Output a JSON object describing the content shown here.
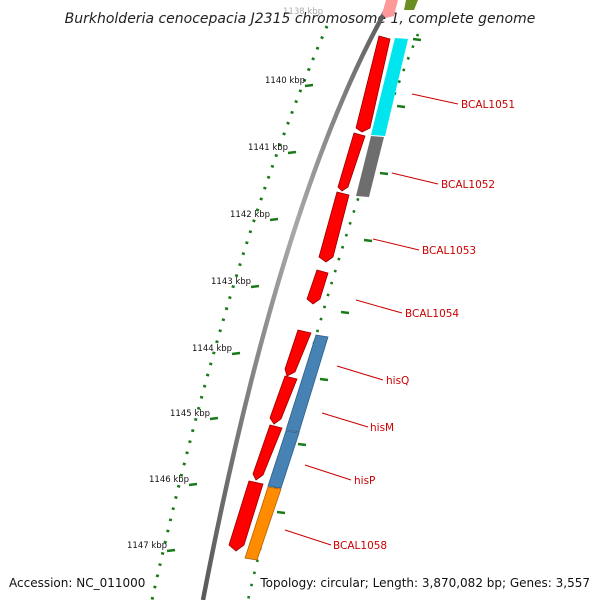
{
  "title": "Burkholderia cenocepacia J2315 chromosome 1, complete genome",
  "partial_top_label": "1138 kbp",
  "ruler_labels": [
    "1140 kbp",
    "1141 kbp",
    "1142 kbp",
    "1143 kbp",
    "1144 kbp",
    "1145 kbp",
    "1146 kbp",
    "1147 kbp"
  ],
  "gene_labels": [
    "BCAL1051",
    "BCAL1052",
    "BCAL1053",
    "BCAL1054",
    "hisQ",
    "hisM",
    "hisP",
    "BCAL1058"
  ],
  "footer": {
    "accession": "Accession: NC_011000",
    "summary": "Topology: circular; Length: 3,870,082 bp; Genes: 3,557"
  },
  "colors": {
    "backbone": "#808080",
    "cds": "#ff0000",
    "gene_label": "#cc0000",
    "ticks": "#1a7a1a",
    "feature_cyan": "#00e5ee",
    "feature_gray": "#6e6e6e",
    "feature_steelblue": "#4682b4",
    "feature_orange": "#ff8c00",
    "feature_olive": "#6b8e23"
  }
}
